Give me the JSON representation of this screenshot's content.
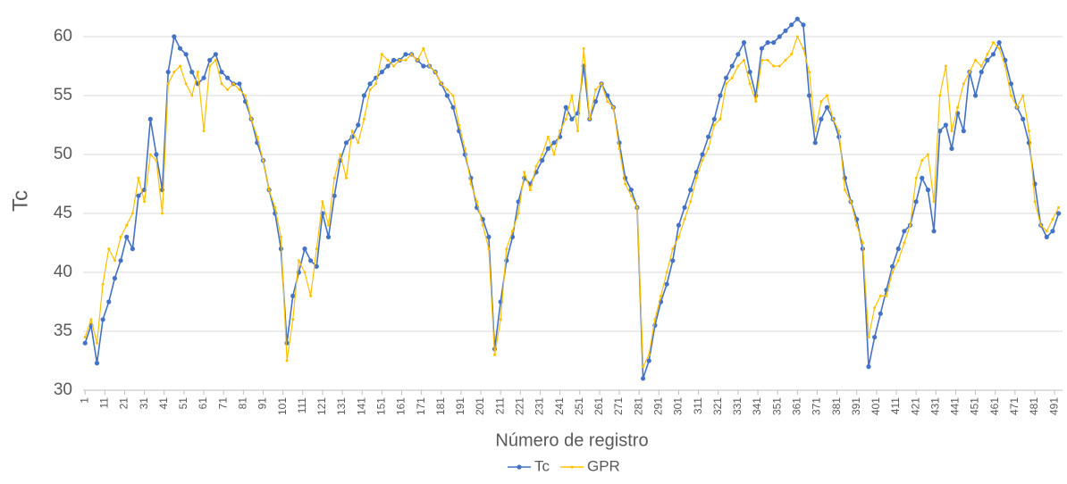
{
  "chart_data": {
    "type": "line",
    "xlabel": "Número de registro",
    "ylabel": "Tc",
    "legend": "bottom",
    "grid": true,
    "xlim": [
      0,
      495
    ],
    "ylim": [
      30,
      62
    ],
    "yticks": [
      30,
      35,
      40,
      45,
      50,
      55,
      60
    ],
    "xticks": [
      1,
      11,
      21,
      31,
      41,
      51,
      61,
      71,
      81,
      91,
      101,
      111,
      121,
      131,
      141,
      151,
      161,
      171,
      181,
      191,
      201,
      211,
      221,
      231,
      241,
      251,
      261,
      271,
      281,
      291,
      301,
      311,
      321,
      331,
      341,
      351,
      361,
      371,
      381,
      391,
      401,
      411,
      421,
      431,
      441,
      451,
      461,
      471,
      481,
      491
    ],
    "x": [
      1,
      4,
      7,
      10,
      13,
      16,
      19,
      22,
      25,
      28,
      31,
      34,
      37,
      40,
      43,
      46,
      49,
      52,
      55,
      58,
      61,
      64,
      67,
      70,
      73,
      76,
      79,
      82,
      85,
      88,
      91,
      94,
      97,
      100,
      103,
      106,
      109,
      112,
      115,
      118,
      121,
      124,
      127,
      130,
      133,
      136,
      139,
      142,
      145,
      148,
      151,
      154,
      157,
      160,
      163,
      166,
      169,
      172,
      175,
      178,
      181,
      184,
      187,
      190,
      193,
      196,
      199,
      202,
      205,
      208,
      211,
      214,
      217,
      220,
      223,
      226,
      229,
      232,
      235,
      238,
      241,
      244,
      247,
      250,
      253,
      256,
      259,
      262,
      265,
      268,
      271,
      274,
      277,
      280,
      283,
      286,
      289,
      292,
      295,
      298,
      301,
      304,
      307,
      310,
      313,
      316,
      319,
      322,
      325,
      328,
      331,
      334,
      337,
      340,
      343,
      346,
      349,
      352,
      355,
      358,
      361,
      364,
      367,
      370,
      373,
      376,
      379,
      382,
      385,
      388,
      391,
      394,
      397,
      400,
      403,
      406,
      409,
      412,
      415,
      418,
      421,
      424,
      427,
      430,
      433,
      436,
      439,
      442,
      445,
      448,
      451,
      454,
      457,
      460,
      463,
      466,
      469,
      472,
      475,
      478,
      481,
      484,
      487,
      490,
      493
    ],
    "series": [
      {
        "name": "Tc",
        "color": "#4472c4",
        "values": [
          34,
          35.5,
          32.3,
          36,
          37.5,
          39.5,
          41,
          43,
          42,
          46.5,
          47,
          53,
          50,
          47,
          57,
          60,
          59,
          58.5,
          57,
          56,
          56.5,
          58,
          58.5,
          57,
          56.5,
          56,
          56,
          54.5,
          53,
          51,
          49.5,
          47,
          45,
          42,
          34,
          38,
          40,
          42,
          41,
          40.5,
          45,
          43,
          46.5,
          49.5,
          51,
          51.5,
          52.5,
          55,
          56,
          56.5,
          57,
          57.5,
          58,
          58,
          58.5,
          58.5,
          58,
          57.5,
          57.5,
          57,
          56,
          55,
          54,
          52,
          50,
          48,
          45.5,
          44.5,
          43,
          33.5,
          37.5,
          41,
          43,
          46,
          48,
          47.5,
          48.5,
          49.5,
          50.5,
          51,
          51.5,
          54,
          53,
          53.5,
          57.5,
          53,
          54.5,
          56,
          55,
          54,
          51,
          48,
          47,
          45.5,
          31,
          32.5,
          35.5,
          37.5,
          39,
          41,
          44,
          45.5,
          47,
          48.5,
          50,
          51.5,
          53,
          55,
          56.5,
          57.5,
          58.5,
          59.5,
          57,
          55,
          59,
          59.5,
          59.5,
          60,
          60.5,
          61,
          61.5,
          61,
          55,
          51,
          53,
          54,
          53,
          51.5,
          48,
          46,
          44.5,
          42,
          32,
          34.5,
          36.5,
          38.5,
          40.5,
          42,
          43.5,
          44,
          46,
          48,
          47,
          43.5,
          52,
          52.5,
          50.5,
          53.5,
          52,
          57,
          55,
          57,
          58,
          58.5,
          59.5,
          58,
          56,
          54,
          53,
          51,
          47.5,
          44,
          43,
          43.5,
          45
        ]
      },
      {
        "name": "GPR",
        "color": "#ffc000",
        "values": [
          34.5,
          36,
          34,
          39,
          42,
          41,
          43,
          44,
          45,
          48,
          46,
          50,
          49.5,
          45,
          56,
          57,
          57.5,
          56,
          55,
          57,
          52,
          57.5,
          58,
          56,
          55.5,
          56,
          55.5,
          55,
          53,
          51.5,
          49.5,
          47,
          45.5,
          43,
          32.5,
          36,
          41,
          40,
          38,
          42,
          46,
          44,
          48,
          50,
          48,
          52,
          51,
          53,
          55.5,
          56,
          58.5,
          58,
          57.5,
          58,
          58,
          58.5,
          58,
          59,
          57.5,
          57,
          56,
          55.5,
          55,
          52.5,
          50.5,
          47.5,
          46,
          44,
          42,
          33,
          36,
          42,
          43.5,
          45,
          48.5,
          47,
          49,
          50,
          51.5,
          50,
          52,
          53,
          55,
          52,
          59,
          53,
          55.5,
          56,
          54.5,
          54,
          50.5,
          47.5,
          46.5,
          45.5,
          32,
          33,
          36,
          38,
          40,
          42,
          43,
          44.5,
          46,
          48,
          49.5,
          50.5,
          52.5,
          53,
          56,
          56.5,
          57.5,
          58,
          56,
          54.5,
          58,
          58,
          57.5,
          57.5,
          58,
          58.5,
          60,
          59,
          57,
          52,
          54.5,
          55,
          53,
          52,
          47,
          46,
          44,
          42.5,
          34.5,
          37,
          38,
          38,
          40,
          41,
          42.5,
          44,
          48,
          49.5,
          50,
          46,
          55,
          57.5,
          52,
          54,
          56,
          57,
          58,
          57.5,
          58.5,
          59.5,
          59,
          57.5,
          55,
          54,
          55,
          52,
          46,
          44,
          43.5,
          44.5,
          45.5
        ]
      }
    ]
  }
}
